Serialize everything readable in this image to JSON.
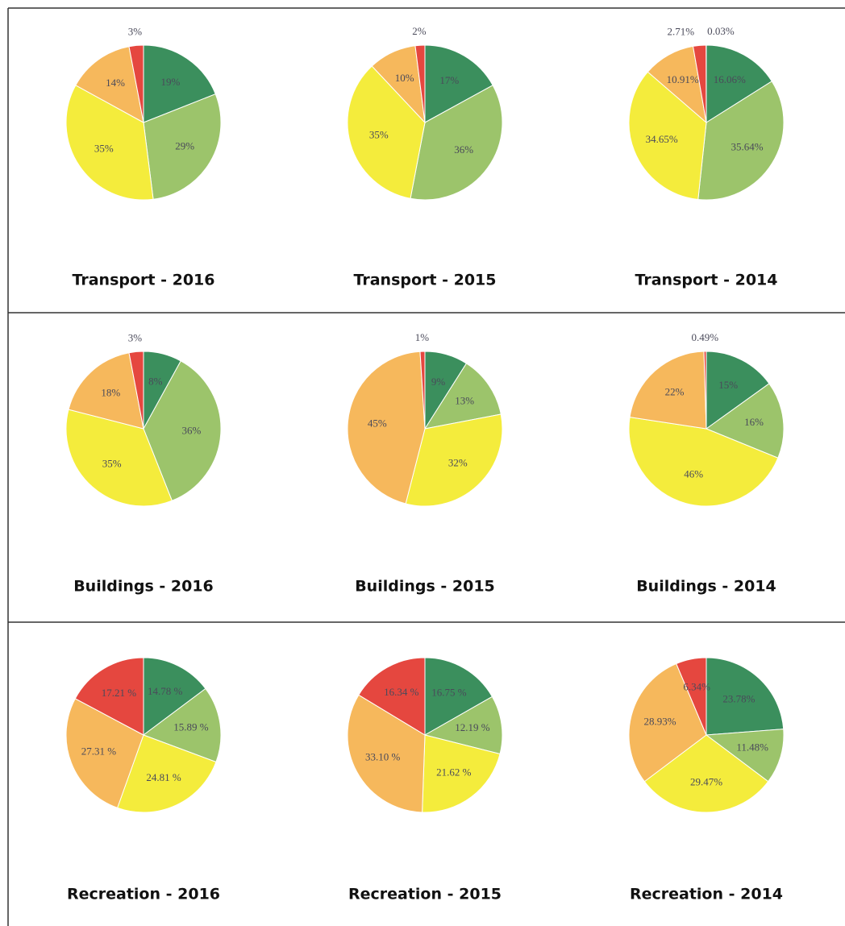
{
  "chart_data": [
    {
      "type": "pie",
      "title": "Transport - 2016",
      "values": [
        19,
        29,
        35,
        14,
        3
      ],
      "value_labels": [
        "19%",
        "29%",
        "35%",
        "14%",
        "3%"
      ],
      "colors": [
        "#3b8f5d",
        "#9cc46b",
        "#f4ec3c",
        "#f6b85c",
        "#e5473f"
      ]
    },
    {
      "type": "pie",
      "title": "Transport - 2015",
      "values": [
        17,
        36,
        35,
        10,
        2
      ],
      "value_labels": [
        "17%",
        "36%",
        "35%",
        "10%",
        "2%"
      ],
      "colors": [
        "#3b8f5d",
        "#9cc46b",
        "#f4ec3c",
        "#f6b85c",
        "#e5473f"
      ]
    },
    {
      "type": "pie",
      "title": "Transport - 2014",
      "values": [
        16.06,
        35.64,
        34.65,
        10.91,
        2.71,
        0.03
      ],
      "value_labels": [
        "16.06%",
        "35.64%",
        "34.65%",
        "10.91%",
        "2.71%",
        "0.03%"
      ],
      "colors": [
        "#3b8f5d",
        "#9cc46b",
        "#f4ec3c",
        "#f6b85c",
        "#e5473f",
        "#a02020"
      ]
    },
    {
      "type": "pie",
      "title": "Buildings - 2016",
      "values": [
        8,
        36,
        35,
        18,
        3
      ],
      "value_labels": [
        "8%",
        "36%",
        "35%",
        "18%",
        "3%"
      ],
      "colors": [
        "#3b8f5d",
        "#9cc46b",
        "#f4ec3c",
        "#f6b85c",
        "#e5473f"
      ]
    },
    {
      "type": "pie",
      "title": "Buildings - 2015",
      "values": [
        9,
        13,
        32,
        45,
        1
      ],
      "value_labels": [
        "9%",
        "13%",
        "32%",
        "45%",
        "1%"
      ],
      "colors": [
        "#3b8f5d",
        "#9cc46b",
        "#f4ec3c",
        "#f6b85c",
        "#e5473f"
      ]
    },
    {
      "type": "pie",
      "title": "Buildings - 2014",
      "values": [
        15,
        16,
        46,
        22,
        0.49
      ],
      "value_labels": [
        "15%",
        "16%",
        "46%",
        "22%",
        "0.49%"
      ],
      "colors": [
        "#3b8f5d",
        "#9cc46b",
        "#f4ec3c",
        "#f6b85c",
        "#e5473f"
      ]
    },
    {
      "type": "pie",
      "title": "Recreation - 2016",
      "values": [
        14.78,
        15.89,
        24.81,
        27.31,
        17.21
      ],
      "value_labels": [
        "14.78 %",
        "15.89 %",
        "24.81 %",
        "27.31 %",
        "17.21 %"
      ],
      "colors": [
        "#3b8f5d",
        "#9cc46b",
        "#f4ec3c",
        "#f6b85c",
        "#e5473f"
      ]
    },
    {
      "type": "pie",
      "title": "Recreation - 2015",
      "values": [
        16.75,
        12.19,
        21.62,
        33.1,
        16.34
      ],
      "value_labels": [
        "16.75 %",
        "12.19 %",
        "21.62 %",
        "33.10 %",
        "16.34 %"
      ],
      "colors": [
        "#3b8f5d",
        "#9cc46b",
        "#f4ec3c",
        "#f6b85c",
        "#e5473f"
      ]
    },
    {
      "type": "pie",
      "title": "Recreation - 2014",
      "values": [
        23.78,
        11.48,
        29.47,
        28.93,
        6.34
      ],
      "value_labels": [
        "23.78%",
        "11.48%",
        "29.47%",
        "28.93%",
        "6.34%"
      ],
      "colors": [
        "#3b8f5d",
        "#9cc46b",
        "#f4ec3c",
        "#f6b85c",
        "#e5473f"
      ]
    }
  ]
}
